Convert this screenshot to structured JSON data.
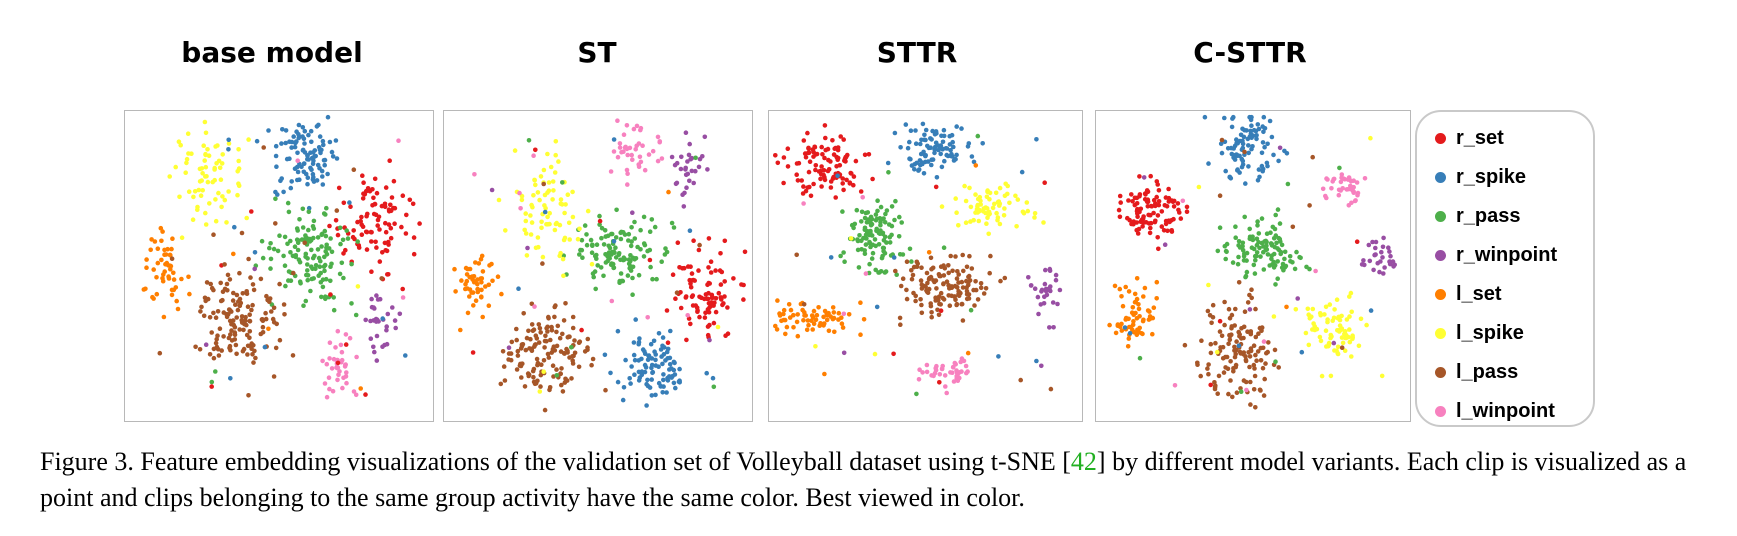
{
  "figure": {
    "caption_before_cite": "Figure 3. Feature embedding visualizations of the validation set of Volleyball dataset using t-SNE [",
    "cite": "42",
    "caption_after_cite": "] by different model variants. Each clip is visualized as a point and clips belonging to the same group activity have the same color. Best viewed in color."
  },
  "legend": [
    {
      "label": "r_set",
      "color": "#e41a1c"
    },
    {
      "label": "r_spike",
      "color": "#377eb8"
    },
    {
      "label": "r_pass",
      "color": "#4daf4a"
    },
    {
      "label": "r_winpoint",
      "color": "#984ea3"
    },
    {
      "label": "l_set",
      "color": "#ff7f00"
    },
    {
      "label": "l_spike",
      "color": "#ffff33"
    },
    {
      "label": "l_pass",
      "color": "#a65628"
    },
    {
      "label": "l_winpoint",
      "color": "#f781bf"
    }
  ],
  "chart_data": [
    {
      "type": "scatter",
      "title": "base model",
      "grid": false,
      "clusters": [
        {
          "class": "r_set",
          "cx": 0.8,
          "cy": 0.36,
          "sx": 0.06,
          "sy": 0.08,
          "n": 95
        },
        {
          "class": "r_spike",
          "cx": 0.58,
          "cy": 0.15,
          "sx": 0.055,
          "sy": 0.06,
          "n": 100
        },
        {
          "class": "r_pass",
          "cx": 0.61,
          "cy": 0.47,
          "sx": 0.07,
          "sy": 0.08,
          "n": 130
        },
        {
          "class": "r_winpoint",
          "cx": 0.83,
          "cy": 0.7,
          "sx": 0.03,
          "sy": 0.05,
          "n": 30
        },
        {
          "class": "l_set",
          "cx": 0.12,
          "cy": 0.51,
          "sx": 0.035,
          "sy": 0.06,
          "n": 50
        },
        {
          "class": "l_spike",
          "cx": 0.27,
          "cy": 0.22,
          "sx": 0.06,
          "sy": 0.07,
          "n": 70
        },
        {
          "class": "l_pass",
          "cx": 0.37,
          "cy": 0.67,
          "sx": 0.07,
          "sy": 0.09,
          "n": 140
        },
        {
          "class": "l_winpoint",
          "cx": 0.69,
          "cy": 0.84,
          "sx": 0.025,
          "sy": 0.055,
          "n": 40
        }
      ]
    },
    {
      "type": "scatter",
      "title": "ST",
      "grid": false,
      "clusters": [
        {
          "class": "r_set",
          "cx": 0.84,
          "cy": 0.58,
          "sx": 0.055,
          "sy": 0.07,
          "n": 90
        },
        {
          "class": "r_spike",
          "cx": 0.68,
          "cy": 0.83,
          "sx": 0.06,
          "sy": 0.055,
          "n": 95
        },
        {
          "class": "r_pass",
          "cx": 0.58,
          "cy": 0.46,
          "sx": 0.07,
          "sy": 0.06,
          "n": 120
        },
        {
          "class": "r_winpoint",
          "cx": 0.79,
          "cy": 0.19,
          "sx": 0.03,
          "sy": 0.05,
          "n": 30
        },
        {
          "class": "l_set",
          "cx": 0.11,
          "cy": 0.54,
          "sx": 0.035,
          "sy": 0.05,
          "n": 50
        },
        {
          "class": "l_spike",
          "cx": 0.33,
          "cy": 0.32,
          "sx": 0.05,
          "sy": 0.09,
          "n": 75
        },
        {
          "class": "l_pass",
          "cx": 0.34,
          "cy": 0.78,
          "sx": 0.07,
          "sy": 0.07,
          "n": 140
        },
        {
          "class": "l_winpoint",
          "cx": 0.62,
          "cy": 0.12,
          "sx": 0.035,
          "sy": 0.05,
          "n": 40
        }
      ]
    },
    {
      "type": "scatter",
      "title": "STTR",
      "grid": false,
      "clusters": [
        {
          "class": "r_set",
          "cx": 0.17,
          "cy": 0.18,
          "sx": 0.06,
          "sy": 0.05,
          "n": 100
        },
        {
          "class": "r_spike",
          "cx": 0.53,
          "cy": 0.13,
          "sx": 0.06,
          "sy": 0.04,
          "n": 90
        },
        {
          "class": "r_pass",
          "cx": 0.34,
          "cy": 0.4,
          "sx": 0.045,
          "sy": 0.06,
          "n": 110
        },
        {
          "class": "r_winpoint",
          "cx": 0.88,
          "cy": 0.58,
          "sx": 0.025,
          "sy": 0.04,
          "n": 30
        },
        {
          "class": "l_set",
          "cx": 0.14,
          "cy": 0.67,
          "sx": 0.07,
          "sy": 0.03,
          "n": 65
        },
        {
          "class": "l_spike",
          "cx": 0.7,
          "cy": 0.31,
          "sx": 0.06,
          "sy": 0.035,
          "n": 70
        },
        {
          "class": "l_pass",
          "cx": 0.57,
          "cy": 0.57,
          "sx": 0.07,
          "sy": 0.05,
          "n": 130
        },
        {
          "class": "l_winpoint",
          "cx": 0.58,
          "cy": 0.84,
          "sx": 0.05,
          "sy": 0.02,
          "n": 40
        }
      ]
    },
    {
      "type": "scatter",
      "title": "C-STTR",
      "grid": false,
      "clusters": [
        {
          "class": "r_set",
          "cx": 0.18,
          "cy": 0.33,
          "sx": 0.055,
          "sy": 0.045,
          "n": 100
        },
        {
          "class": "r_spike",
          "cx": 0.49,
          "cy": 0.12,
          "sx": 0.045,
          "sy": 0.06,
          "n": 90
        },
        {
          "class": "r_pass",
          "cx": 0.53,
          "cy": 0.45,
          "sx": 0.06,
          "sy": 0.05,
          "n": 110
        },
        {
          "class": "r_winpoint",
          "cx": 0.91,
          "cy": 0.46,
          "sx": 0.025,
          "sy": 0.03,
          "n": 30
        },
        {
          "class": "l_set",
          "cx": 0.12,
          "cy": 0.67,
          "sx": 0.04,
          "sy": 0.06,
          "n": 60
        },
        {
          "class": "l_spike",
          "cx": 0.76,
          "cy": 0.71,
          "sx": 0.05,
          "sy": 0.055,
          "n": 75
        },
        {
          "class": "l_pass",
          "cx": 0.46,
          "cy": 0.77,
          "sx": 0.06,
          "sy": 0.08,
          "n": 130
        },
        {
          "class": "l_winpoint",
          "cx": 0.8,
          "cy": 0.24,
          "sx": 0.035,
          "sy": 0.025,
          "n": 40
        }
      ]
    }
  ]
}
